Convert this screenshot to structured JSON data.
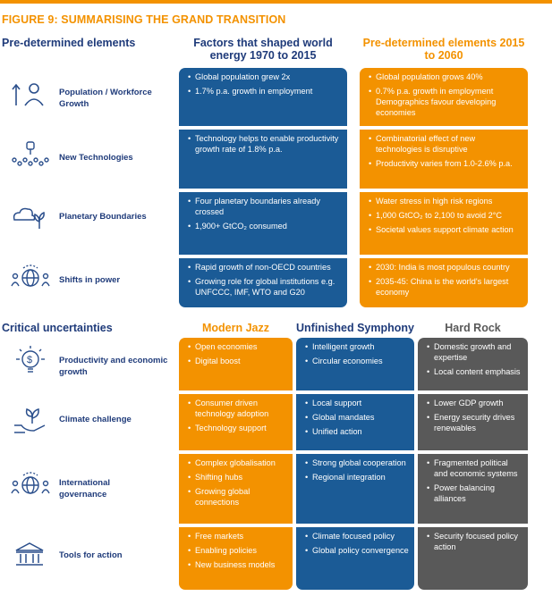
{
  "figure_title": "FIGURE 9: SUMMARISING THE GRAND TRANSITION",
  "section1": {
    "title": "Pre-determined elements",
    "col_past_header": "Factors that shaped world energy 1970 to 2015",
    "col_future_header": "Pre-determined elements 2015 to 2060",
    "rows": [
      {
        "label": "Population / Workforce Growth",
        "icon": "people-growth-icon",
        "past": [
          "Global population grew 2x",
          "1.7% p.a. growth in employment"
        ],
        "future": [
          "Global population grows 40%",
          "0.7% p.a. growth in employment Demographics favour developing economies"
        ]
      },
      {
        "label": "New Technologies",
        "icon": "network-bulb-icon",
        "past": [
          "Technology helps to enable productivity growth rate of 1.8% p.a."
        ],
        "future": [
          "Combinatorial effect of new technologies is disruptive",
          "Productivity varies from 1.0-2.6% p.a."
        ]
      },
      {
        "label": "Planetary Boundaries",
        "icon": "cloud-plant-icon",
        "past": [
          "Four planetary boundaries already crossed",
          "1,900+ GtCO₂ consumed"
        ],
        "future": [
          "Water stress in high risk regions",
          "1,000 GtCO₂ to 2,100 to avoid 2°C",
          "Societal values support climate action"
        ]
      },
      {
        "label": "Shifts in power",
        "icon": "globe-people-icon",
        "past": [
          "Rapid growth of non-OECD countries",
          "Growing role for global institutions e.g. UNFCCC, IMF, WTO and G20"
        ],
        "future": [
          "2030: India is most populous country",
          "2035-45: China is the world's largest economy"
        ]
      }
    ]
  },
  "section2": {
    "title": "Critical uncertainties",
    "scenarios": [
      "Modern Jazz",
      "Unfinished Symphony",
      "Hard Rock"
    ],
    "rows": [
      {
        "label": "Productivity and economic growth",
        "icon": "dollar-bulb-icon",
        "modern_jazz": [
          "Open economies",
          "Digital boost"
        ],
        "unfinished_symphony": [
          "Intelligent growth",
          "Circular economies"
        ],
        "hard_rock": [
          "Domestic growth and expertise",
          "Local content emphasis"
        ]
      },
      {
        "label": "Climate challenge",
        "icon": "hand-plant-icon",
        "modern_jazz": [
          "Consumer driven technology adoption",
          "Technology support"
        ],
        "unfinished_symphony": [
          "Local support",
          "Global mandates",
          "Unified action"
        ],
        "hard_rock": [
          "Lower GDP growth",
          "Energy security drives renewables"
        ]
      },
      {
        "label": "International governance",
        "icon": "globe-people-icon",
        "modern_jazz": [
          "Complex globalisation",
          "Shifting hubs",
          "Growing global connections"
        ],
        "unfinished_symphony": [
          "Strong global cooperation",
          "Regional integration"
        ],
        "hard_rock": [
          "Fragmented political and economic systems",
          "Power balancing alliances"
        ]
      },
      {
        "label": "Tools for action",
        "icon": "institution-icon",
        "modern_jazz": [
          "Free markets",
          "Enabling policies",
          "New business models"
        ],
        "unfinished_symphony": [
          "Climate focused policy",
          "Global policy convergence"
        ],
        "hard_rock": [
          "Security focused policy action"
        ]
      }
    ]
  },
  "colors": {
    "blue": "#1b5b96",
    "orange": "#f39200",
    "gray": "#595959",
    "navy_text": "#1f3b7a"
  }
}
